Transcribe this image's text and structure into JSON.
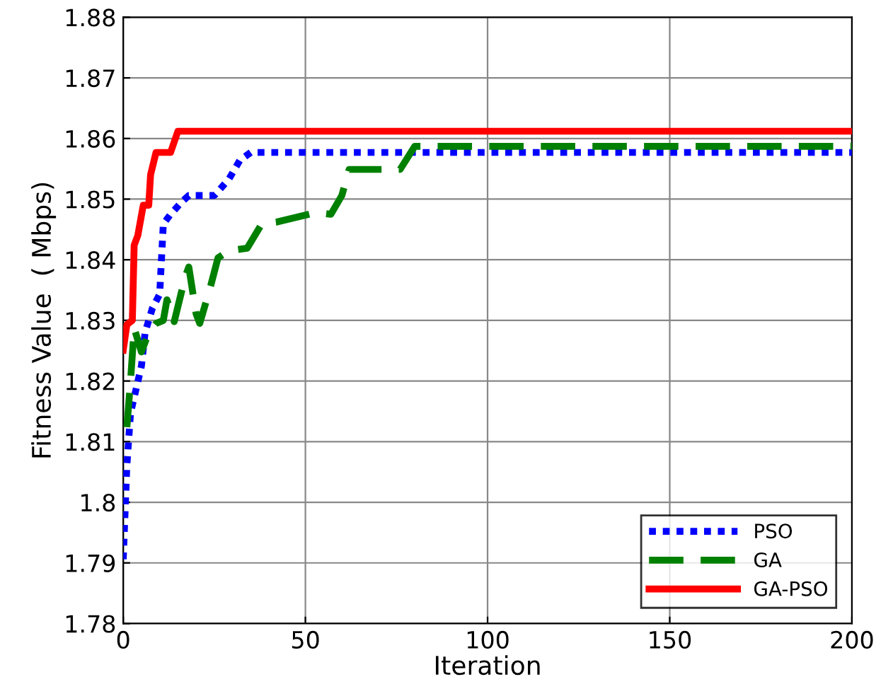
{
  "chart_data": {
    "type": "line",
    "xlabel": "Iteration",
    "ylabel": "Fitness Value  ( Mbps)",
    "xlim": [
      0,
      200
    ],
    "ylim": [
      1.78,
      1.88
    ],
    "xticks": [
      0,
      50,
      100,
      150,
      200
    ],
    "yticks": [
      {
        "value": 1.78,
        "label": "1.78"
      },
      {
        "value": 1.79,
        "label": "1.79"
      },
      {
        "value": 1.8,
        "label": "1.8"
      },
      {
        "value": 1.81,
        "label": "1.81"
      },
      {
        "value": 1.82,
        "label": "1.82"
      },
      {
        "value": 1.83,
        "label": "1.83"
      },
      {
        "value": 1.84,
        "label": "1.84"
      },
      {
        "value": 1.85,
        "label": "1.85"
      },
      {
        "value": 1.86,
        "label": "1.86"
      },
      {
        "value": 1.87,
        "label": "1.87"
      },
      {
        "value": 1.88,
        "label": "1.88"
      }
    ],
    "grid": true,
    "legend": "bottom right",
    "marker": "none",
    "series": [
      {
        "name": "PSO",
        "color": "#0000ff",
        "line_style": "dotted",
        "x": [
          0,
          1,
          2,
          5,
          6,
          8,
          10,
          11,
          13,
          16,
          18,
          25,
          29,
          32,
          35,
          200
        ],
        "values": [
          1.7906,
          1.8061,
          1.8147,
          1.8225,
          1.828,
          1.832,
          1.8343,
          1.8459,
          1.8475,
          1.8495,
          1.8506,
          1.8506,
          1.8533,
          1.8564,
          1.8577,
          1.8577
        ]
      },
      {
        "name": "GA",
        "color": "#008000",
        "line_style": "dashed",
        "x": [
          1,
          2,
          3,
          5,
          7,
          9,
          11,
          12,
          14,
          17,
          18,
          20,
          21,
          24,
          26,
          29,
          34,
          38,
          42,
          53,
          57,
          60,
          62,
          76,
          80,
          200
        ],
        "values": [
          1.8124,
          1.82,
          1.8287,
          1.8248,
          1.828,
          1.8295,
          1.83,
          1.8334,
          1.8298,
          1.8372,
          1.8388,
          1.8311,
          1.8295,
          1.8357,
          1.8403,
          1.8415,
          1.8419,
          1.8459,
          1.8462,
          1.8478,
          1.8475,
          1.8506,
          1.8549,
          1.8549,
          1.8587,
          1.8587
        ]
      },
      {
        "name": "GA-PSO",
        "color": "#ff0000",
        "line_style": "solid",
        "x": [
          0,
          1,
          2.5,
          3,
          4,
          5.5,
          7,
          7.5,
          9,
          13,
          15,
          200
        ],
        "values": [
          1.8251,
          1.8293,
          1.83,
          1.8424,
          1.844,
          1.849,
          1.849,
          1.854,
          1.8577,
          1.8577,
          1.8612,
          1.8612
        ]
      }
    ]
  }
}
